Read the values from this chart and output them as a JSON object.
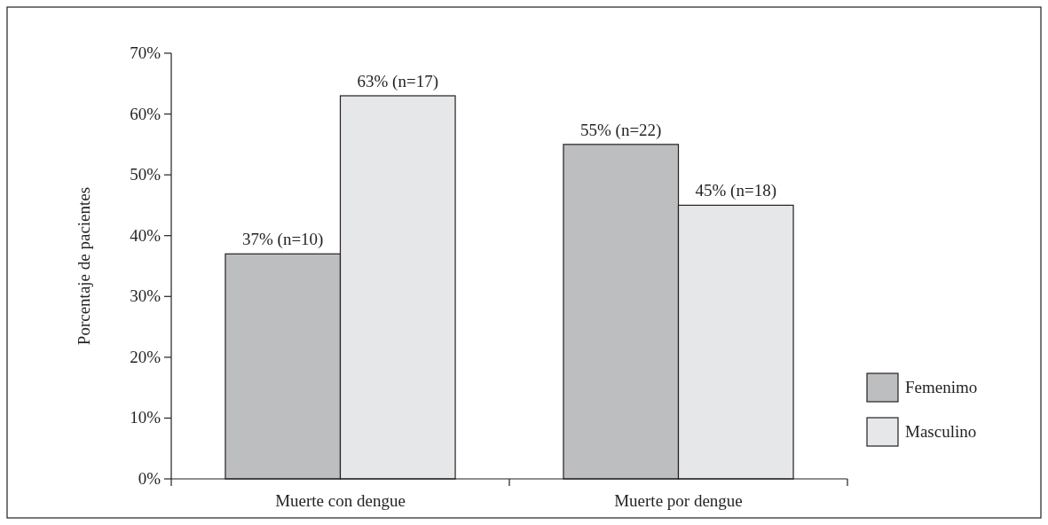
{
  "chart_data": {
    "type": "bar",
    "ylabel": "Porcentaje de pacientes",
    "categories": [
      "Muerte con dengue",
      "Muerte por dengue"
    ],
    "series": [
      {
        "name": "Femenimo",
        "color": "#bdbec0",
        "values": [
          37,
          55
        ],
        "value_labels": [
          "37% (n=10)",
          "55% (n=22)"
        ]
      },
      {
        "name": "Masculino",
        "color": "#e6e7e8",
        "values": [
          63,
          45
        ],
        "value_labels": [
          "63% (n=17)",
          "45% (n=18)"
        ]
      }
    ],
    "ylim": [
      0,
      70
    ],
    "yticks": [
      {
        "value": 0,
        "label": "0%"
      },
      {
        "value": 10,
        "label": "10%"
      },
      {
        "value": 20,
        "label": "20%"
      },
      {
        "value": 30,
        "label": "30%"
      },
      {
        "value": 40,
        "label": "40%"
      },
      {
        "value": 50,
        "label": "50%"
      },
      {
        "value": 60,
        "label": "60%"
      },
      {
        "value": 70,
        "label": "70%"
      }
    ],
    "grid": false,
    "legend": "right"
  }
}
